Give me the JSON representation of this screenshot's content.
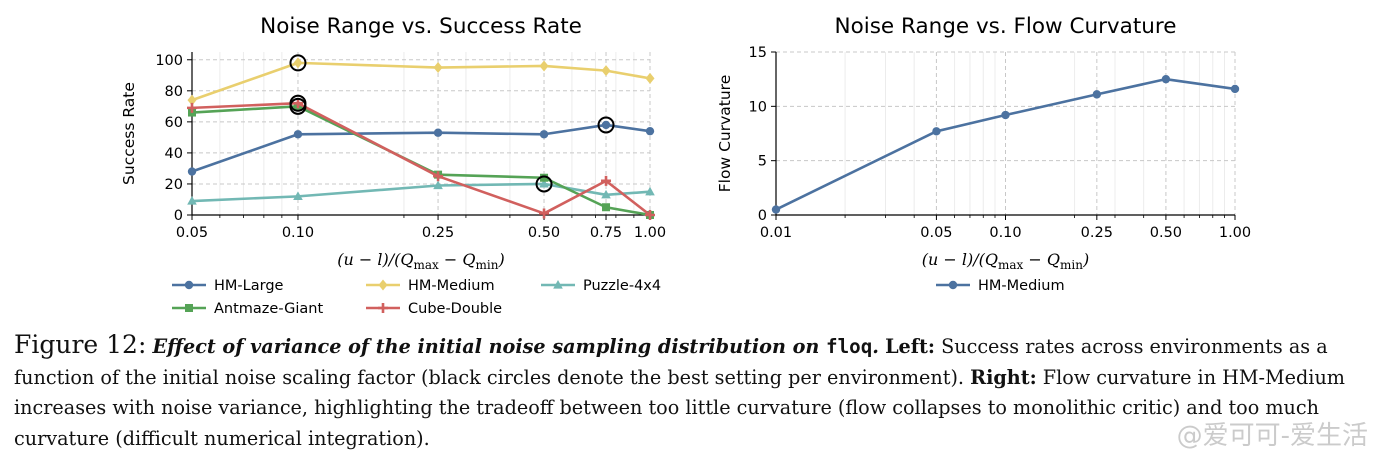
{
  "chart_data": [
    {
      "type": "line",
      "title": "Noise Range vs. Success Rate",
      "xlabel": "(u − l)/(Q",
      "xlabel_sub1": "max",
      "xlabel_mid": " − Q",
      "xlabel_sub2": "min",
      "xlabel_end": ")",
      "ylabel": "Success Rate",
      "x": [
        0.05,
        0.1,
        0.25,
        0.5,
        0.75,
        1.0
      ],
      "x_tick_labels": [
        "0.05",
        "0.10",
        "0.25",
        "0.50",
        "0.75",
        "1.00"
      ],
      "x_scale": "log",
      "xlim": [
        0.05,
        1.0
      ],
      "ylim": [
        0,
        105
      ],
      "y_ticks": [
        0,
        20,
        40,
        60,
        80,
        100
      ],
      "y_tick_labels": [
        "0",
        "20",
        "40",
        "60",
        "80",
        "100"
      ],
      "grid": true,
      "legend_position": "bottom",
      "series": [
        {
          "name": "HM-Large",
          "color": "#4c72a0",
          "marker": "circle",
          "values": [
            28,
            52,
            53,
            52,
            58,
            54
          ]
        },
        {
          "name": "HM-Medium",
          "color": "#e9cf6e",
          "marker": "diamond",
          "values": [
            74,
            98,
            95,
            96,
            93,
            88
          ]
        },
        {
          "name": "Puzzle-4x4",
          "color": "#72b8b4",
          "marker": "triangle",
          "values": [
            9,
            12,
            19,
            20,
            13,
            15
          ]
        },
        {
          "name": "Antmaze-Giant",
          "color": "#55a356",
          "marker": "square",
          "values": [
            66,
            70,
            26,
            24,
            5,
            0
          ]
        },
        {
          "name": "Cube-Double",
          "color": "#d1605e",
          "marker": "plus",
          "values": [
            69,
            72,
            25,
            1,
            22,
            0
          ]
        }
      ],
      "best_markers": [
        {
          "series": "HM-Medium",
          "x": 0.1,
          "y": 98
        },
        {
          "series": "Cube-Double",
          "x": 0.1,
          "y": 72
        },
        {
          "series": "Antmaze-Giant",
          "x": 0.1,
          "y": 70
        },
        {
          "series": "HM-Large",
          "x": 0.75,
          "y": 58
        },
        {
          "series": "Puzzle-4x4",
          "x": 0.5,
          "y": 20
        }
      ]
    },
    {
      "type": "line",
      "title": "Noise Range vs. Flow Curvature",
      "xlabel": "(u − l)/(Q",
      "xlabel_sub1": "max",
      "xlabel_mid": " − Q",
      "xlabel_sub2": "min",
      "xlabel_end": ")",
      "ylabel": "Flow Curvature",
      "x": [
        0.01,
        0.05,
        0.1,
        0.25,
        0.5,
        1.0
      ],
      "x_tick_labels": [
        "0.01",
        "0.05",
        "0.10",
        "0.25",
        "0.50",
        "1.00"
      ],
      "x_scale": "log",
      "xlim": [
        0.01,
        1.0
      ],
      "ylim": [
        0,
        15
      ],
      "y_ticks": [
        0,
        5,
        10,
        15
      ],
      "y_tick_labels": [
        "0",
        "5",
        "10",
        "15"
      ],
      "grid": true,
      "legend_position": "bottom",
      "series": [
        {
          "name": "HM-Medium",
          "color": "#4c72a0",
          "marker": "circle",
          "values": [
            0.5,
            7.7,
            9.2,
            11.1,
            12.5,
            11.6
          ]
        }
      ]
    }
  ],
  "caption": {
    "label": "Figure 12:",
    "emph": "Effect of variance of the initial noise sampling distribution on ",
    "code": "floq",
    "emph_end": ".",
    "left_label": "Left:",
    "left_text": " Success rates across environments as a function of the initial noise scaling factor (black circles denote the best setting per environment). ",
    "right_label": "Right:",
    "right_text": " Flow curvature in HM-Medium increases with noise variance, highlighting the tradeoff between too little curvature (flow collapses to monolithic critic) and too much curvature (difficult numerical integration)."
  },
  "watermark": "@爱可可-爱生活"
}
